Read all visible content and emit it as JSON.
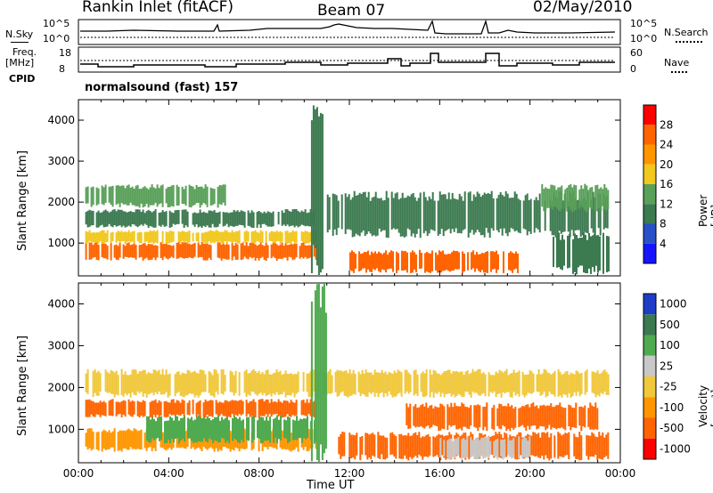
{
  "header": {
    "station": "Rankin Inlet (fitACF)",
    "beam": "Beam 07",
    "date": "02/May/2010"
  },
  "panels": {
    "nsky_label": "N.Sky",
    "nsearch_label": "N.Search",
    "nsky_ticks": [
      "10^5",
      "10^0"
    ],
    "nsearch_ticks": [
      "10^5",
      "10^0"
    ],
    "freq_label_1": "Freq.",
    "freq_label_2": "[MHz]",
    "freq_ticks": [
      "18",
      "8"
    ],
    "nave_label": "Nave",
    "nave_ticks": [
      "60",
      "0"
    ],
    "cpid_label": "CPID",
    "cpid_value": "normalsound (fast) 157"
  },
  "chart_data": [
    {
      "type": "heatmap",
      "name": "power",
      "ylabel": "Slant Range [km]",
      "xlabel": "",
      "yticks": [
        "1000",
        "2000",
        "3000",
        "4000"
      ],
      "ylim": [
        200,
        4500
      ],
      "xlim": [
        0,
        24
      ],
      "colorbar_label": "Power [dB]",
      "colorbar_ticks": [
        "4",
        "8",
        "12",
        "16",
        "20",
        "24",
        "28"
      ],
      "colorbar_colors": [
        "#1414ff",
        "#2850c8",
        "#3c7a50",
        "#5aa05a",
        "#f0c81e",
        "#ff9600",
        "#ff6400",
        "#ff0000"
      ],
      "regions": [
        {
          "t0": 0.3,
          "t1": 10.5,
          "r0": 600,
          "r1": 1000,
          "value": 26
        },
        {
          "t0": 0.3,
          "t1": 10.5,
          "r0": 1000,
          "r1": 1300,
          "value": 16
        },
        {
          "t0": 0.3,
          "t1": 10.5,
          "r0": 1400,
          "r1": 1800,
          "value": 10
        },
        {
          "t0": 0.3,
          "t1": 6.5,
          "r0": 1900,
          "r1": 2400,
          "value": 13
        },
        {
          "t0": 10.3,
          "t1": 11.0,
          "r0": 300,
          "r1": 4400,
          "value": 8
        },
        {
          "t0": 12.0,
          "t1": 19.5,
          "r0": 300,
          "r1": 800,
          "value": 27
        },
        {
          "t0": 11.0,
          "t1": 23.5,
          "r0": 1200,
          "r1": 2200,
          "value": 9
        },
        {
          "t0": 20.5,
          "t1": 23.5,
          "r0": 1800,
          "r1": 2400,
          "value": 15
        },
        {
          "t0": 21.0,
          "t1": 23.5,
          "r0": 300,
          "r1": 1200,
          "value": 8
        }
      ]
    },
    {
      "type": "heatmap",
      "name": "velocity",
      "ylabel": "Slant Range [km]",
      "xlabel": "Time UT",
      "yticks": [
        "1000",
        "2000",
        "3000",
        "4000"
      ],
      "ylim": [
        200,
        4500
      ],
      "xlim": [
        0,
        24
      ],
      "xticks": [
        "00:00",
        "04:00",
        "08:00",
        "12:00",
        "16:00",
        "20:00",
        "00:00"
      ],
      "colorbar_label": "Velocity [m s⁻¹]",
      "colorbar_ticks": [
        "1000",
        "500",
        "100",
        "25",
        "-25",
        "-100",
        "-500",
        "-1000"
      ],
      "colorbar_colors": [
        "#1e3cc8",
        "#3c7850",
        "#50aa50",
        "#c8c8c8",
        "#f0c83c",
        "#ff9600",
        "#ff6400",
        "#ff0000"
      ],
      "regions": [
        {
          "t0": 0.3,
          "t1": 10.5,
          "r0": 500,
          "r1": 1000,
          "value": -100
        },
        {
          "t0": 3.0,
          "t1": 10.5,
          "r0": 700,
          "r1": 1300,
          "value": 200
        },
        {
          "t0": 0.3,
          "t1": 10.5,
          "r0": 1300,
          "r1": 1700,
          "value": -300
        },
        {
          "t0": 0.3,
          "t1": 23.5,
          "r0": 1800,
          "r1": 2400,
          "value": 0
        },
        {
          "t0": 10.3,
          "t1": 11.0,
          "r0": 300,
          "r1": 4400,
          "value": 300
        },
        {
          "t0": 11.5,
          "t1": 23.5,
          "r0": 300,
          "r1": 900,
          "value": -150
        },
        {
          "t0": 16.0,
          "t1": 20.0,
          "r0": 300,
          "r1": 800,
          "value": 60
        },
        {
          "t0": 14.5,
          "t1": 23.0,
          "r0": 1000,
          "r1": 1600,
          "value": -150
        }
      ]
    }
  ]
}
